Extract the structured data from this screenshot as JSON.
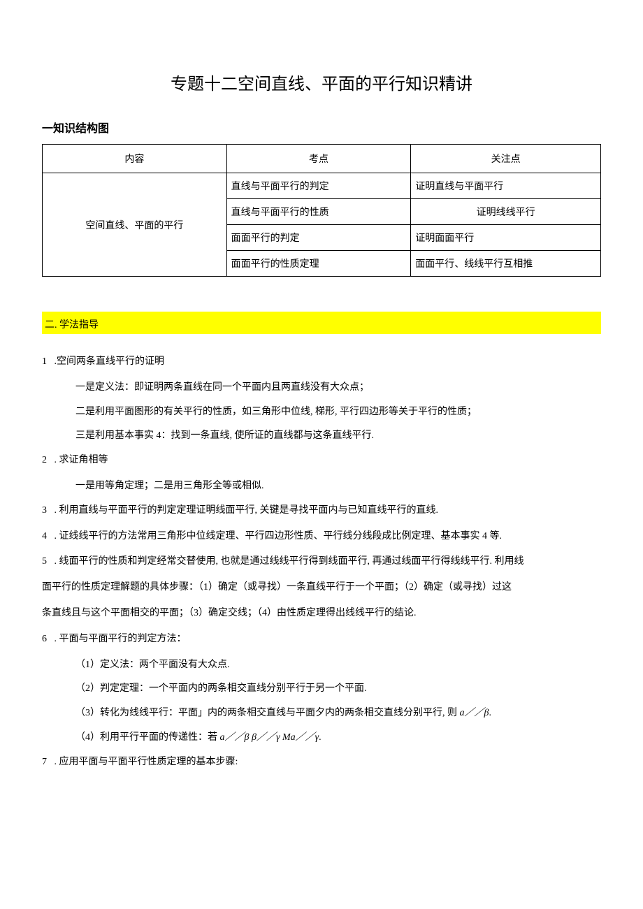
{
  "title": "专题十二空间直线、平面的平行知识精讲",
  "section1_heading": "一知识结构图",
  "table": {
    "headers": [
      "内容",
      "考点",
      "关注点"
    ],
    "content_cell": "空间直线、平面的平行",
    "rows": [
      {
        "point": "直线与平面平行的判定",
        "focus": "证明直线与平面平行",
        "focus_align": "left"
      },
      {
        "point": "直线与平面平行的性质",
        "focus": "证明线线平行",
        "focus_align": "center"
      },
      {
        "point": "面面平行的判定",
        "focus": "证明面面平行",
        "focus_align": "left"
      },
      {
        "point": "面面平行的性质定理",
        "focus": "面面平行、线线平行互相推",
        "focus_align": "left"
      }
    ]
  },
  "section2_heading": "二. 学法指导",
  "items": {
    "item1": {
      "num": "1",
      "text": ".空间两条直线平行的证明",
      "sub1": "一是定义法：即证明两条直线在同一个平面内且两直线没有大众点；",
      "sub2": "二是利用平面图形的有关平行的性质，如三角形中位线, 梯形, 平行四边形等关于平行的性质；",
      "sub3": "三是利用基本事实 4：找到一条直线, 使所证的直线都与这条直线平行."
    },
    "item2": {
      "num": "2",
      "text": ". 求证角相等",
      "sub1": "一是用等角定理；二是用三角形全等或相似."
    },
    "item3": {
      "num": "3",
      "text": ". 利用直线与平面平行的判定定理证明线面平行, 关键是寻找平面内与已知直线平行的直线."
    },
    "item4": {
      "num": "4",
      "text": ". 证线线平行的方法常用三角形中位线定理、平行四边形性质、平行线分线段成比例定理、基本事实 4 等."
    },
    "item5": {
      "num": "5",
      "text": ". 线面平行的性质和判定经常交替使用, 也就是通过线线平行得到线面平行, 再通过线面平行得线线平行. 利用线",
      "cont1": "面平行的性质定理解题的具体步骤：（1）确定（或寻找）一条直线平行于一个平面；（2）确定（或寻找）过这",
      "cont2": "条直线且与这个平面相交的平面；（3）确定交线；（4）由性质定理得出线线平行的结论."
    },
    "item6": {
      "num": "6",
      "text": ". 平面与平面平行的判定方法：",
      "sub1": "（1）定义法：两个平面没有大众点.",
      "sub2": "（2）判定定理：一个平面内的两条相交直线分别平行于另一个平面.",
      "sub3_prefix": "（3）转化为线线平行：平面」内的两条相交直线与平面夕内的两条相交直线分别平行, 则 ",
      "sub3_var": "a／／β",
      "sub3_suffix": ".",
      "sub4_prefix": "（4）利用平行平面的传递性：若 ",
      "sub4_var": "a／／β β／／γ Ma／／γ",
      "sub4_suffix": "."
    },
    "item7": {
      "num": "7",
      "text": ". 应用平面与平面平行性质定理的基本步骤:"
    }
  }
}
